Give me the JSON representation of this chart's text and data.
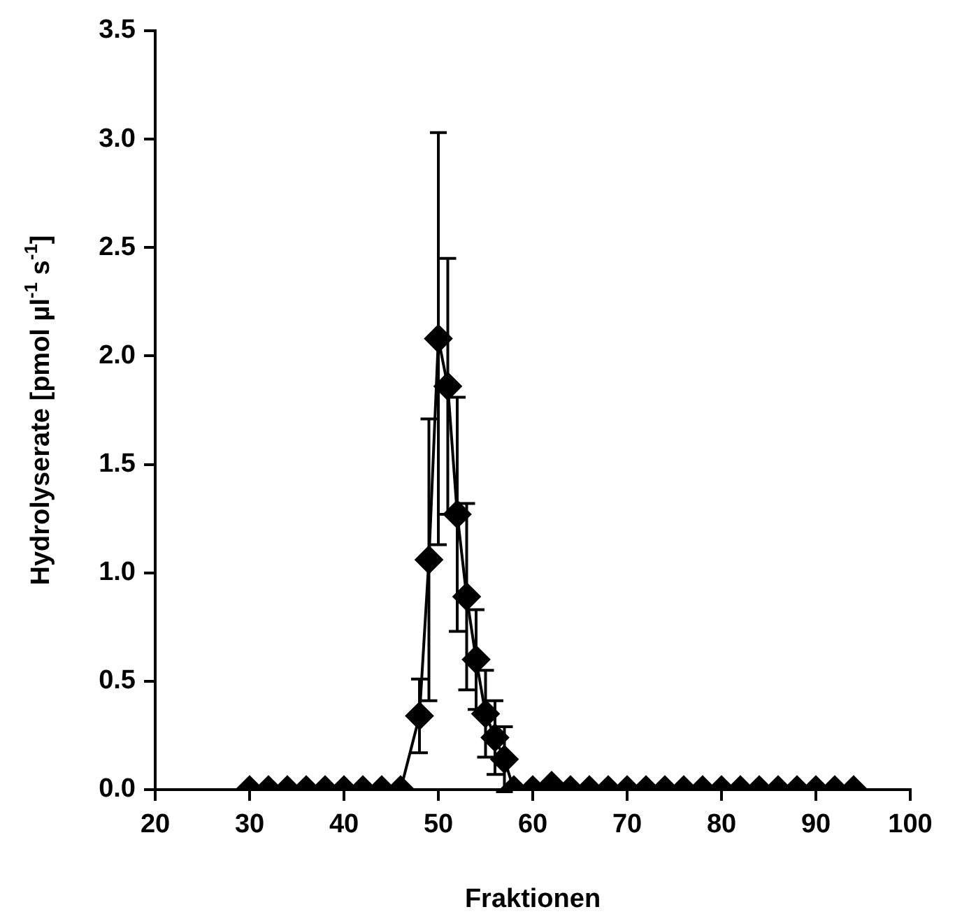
{
  "chart_data": {
    "type": "line",
    "xlabel": "Fraktionen",
    "ylabel": "Hydrolyserate [pmol µl$^{-1}$ s$^{-1}$]",
    "x": [
      30,
      32,
      34,
      36,
      38,
      40,
      42,
      44,
      46,
      48,
      49,
      50,
      51,
      52,
      53,
      54,
      55,
      56,
      57,
      58,
      60,
      62,
      64,
      66,
      68,
      70,
      72,
      74,
      76,
      78,
      80,
      82,
      84,
      86,
      88,
      90,
      92,
      94
    ],
    "series": [
      {
        "color": "#000000",
        "values": [
          0,
          0,
          0,
          0,
          0,
          0,
          0,
          0,
          0,
          0.34,
          1.06,
          2.08,
          1.86,
          1.27,
          0.89,
          0.6,
          0.35,
          0.24,
          0.14,
          0,
          0,
          0.02,
          0,
          0,
          0,
          0,
          0,
          0,
          0,
          0,
          0,
          0,
          0,
          0,
          0,
          0,
          0,
          0
        ],
        "errors": [
          null,
          null,
          null,
          null,
          null,
          null,
          null,
          null,
          null,
          0.17,
          0.65,
          0.95,
          0.59,
          0.54,
          0.43,
          0.23,
          0.2,
          0.17,
          0.15,
          null,
          null,
          null,
          null,
          null,
          null,
          null,
          null,
          null,
          null,
          null,
          null,
          null,
          null,
          null,
          null,
          null,
          null,
          null
        ]
      }
    ],
    "xlim": [
      20,
      100
    ],
    "xticks": [
      20,
      30,
      40,
      50,
      60,
      70,
      80,
      90,
      100
    ],
    "ylim": [
      0,
      3.5
    ],
    "yticks": [
      {
        "value": 0,
        "label": "0.0"
      },
      {
        "value": 0.5,
        "label": "0.5"
      },
      {
        "value": 1,
        "label": "1.0"
      },
      {
        "value": 1.5,
        "label": "1.5"
      },
      {
        "value": 2,
        "label": "2.0"
      },
      {
        "value": 2.5,
        "label": "2.5"
      },
      {
        "value": 3,
        "label": "3.0"
      },
      {
        "value": 3.5,
        "label": "3.5"
      }
    ],
    "grid": false,
    "legend": false,
    "marker": "diamond",
    "line_style": "solid"
  }
}
